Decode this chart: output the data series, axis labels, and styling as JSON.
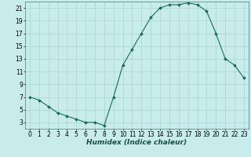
{
  "x": [
    0,
    1,
    2,
    3,
    4,
    5,
    6,
    7,
    8,
    9,
    10,
    11,
    12,
    13,
    14,
    15,
    16,
    17,
    18,
    19,
    20,
    21,
    22,
    23
  ],
  "y": [
    7,
    6.5,
    5.5,
    4.5,
    4,
    3.5,
    3,
    3,
    2.5,
    7,
    12,
    14.5,
    17,
    19.5,
    21,
    21.5,
    21.5,
    21.8,
    21.5,
    20.5,
    17,
    13,
    12,
    10
  ],
  "line_color": "#1a6b5a",
  "marker_color": "#1a6b5a",
  "bg_color": "#c8ecec",
  "grid_color": "#a8d4d4",
  "xlabel": "Humidex (Indice chaleur)",
  "ylabel": "",
  "xlim": [
    -0.5,
    23.5
  ],
  "ylim": [
    2,
    22
  ],
  "yticks": [
    3,
    5,
    7,
    9,
    11,
    13,
    15,
    17,
    19,
    21
  ],
  "xticks": [
    0,
    1,
    2,
    3,
    4,
    5,
    6,
    7,
    8,
    9,
    10,
    11,
    12,
    13,
    14,
    15,
    16,
    17,
    18,
    19,
    20,
    21,
    22,
    23
  ],
  "font_size": 5.5,
  "xlabel_fontsize": 6.5
}
